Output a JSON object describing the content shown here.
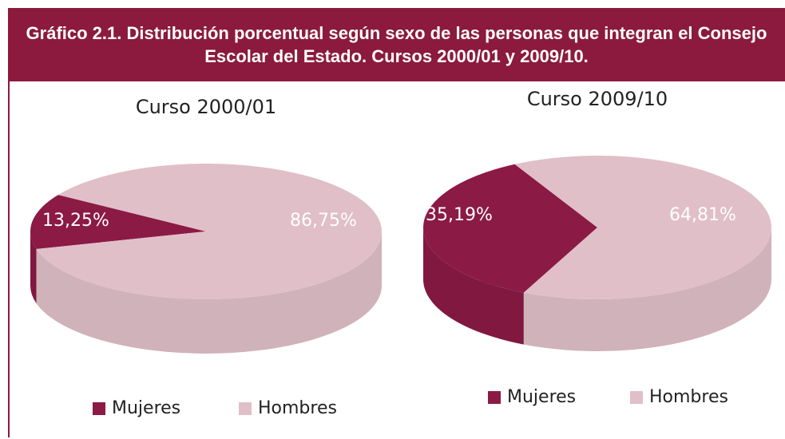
{
  "title": "Gráfico 2.1. Distribución porcentual según sexo de las personas que integran el Consejo Escolar del Estado. Cursos 2000/01 y 2009/10.",
  "chart_data": [
    {
      "type": "pie",
      "title": "Curso 2000/01",
      "categories": [
        "Mujeres",
        "Hombres"
      ],
      "values": [
        13.25,
        86.75
      ],
      "value_labels": [
        "13,25%",
        "86,75%"
      ],
      "colors": [
        "#8b1a45",
        "#e0bfc8"
      ],
      "legend": "bottom"
    },
    {
      "type": "pie",
      "title": "Curso 2009/10",
      "categories": [
        "Mujeres",
        "Hombres"
      ],
      "values": [
        35.19,
        64.81
      ],
      "value_labels": [
        "35,19%",
        "64,81%"
      ],
      "colors": [
        "#8b1a45",
        "#e0bfc8"
      ],
      "legend": "bottom"
    }
  ]
}
